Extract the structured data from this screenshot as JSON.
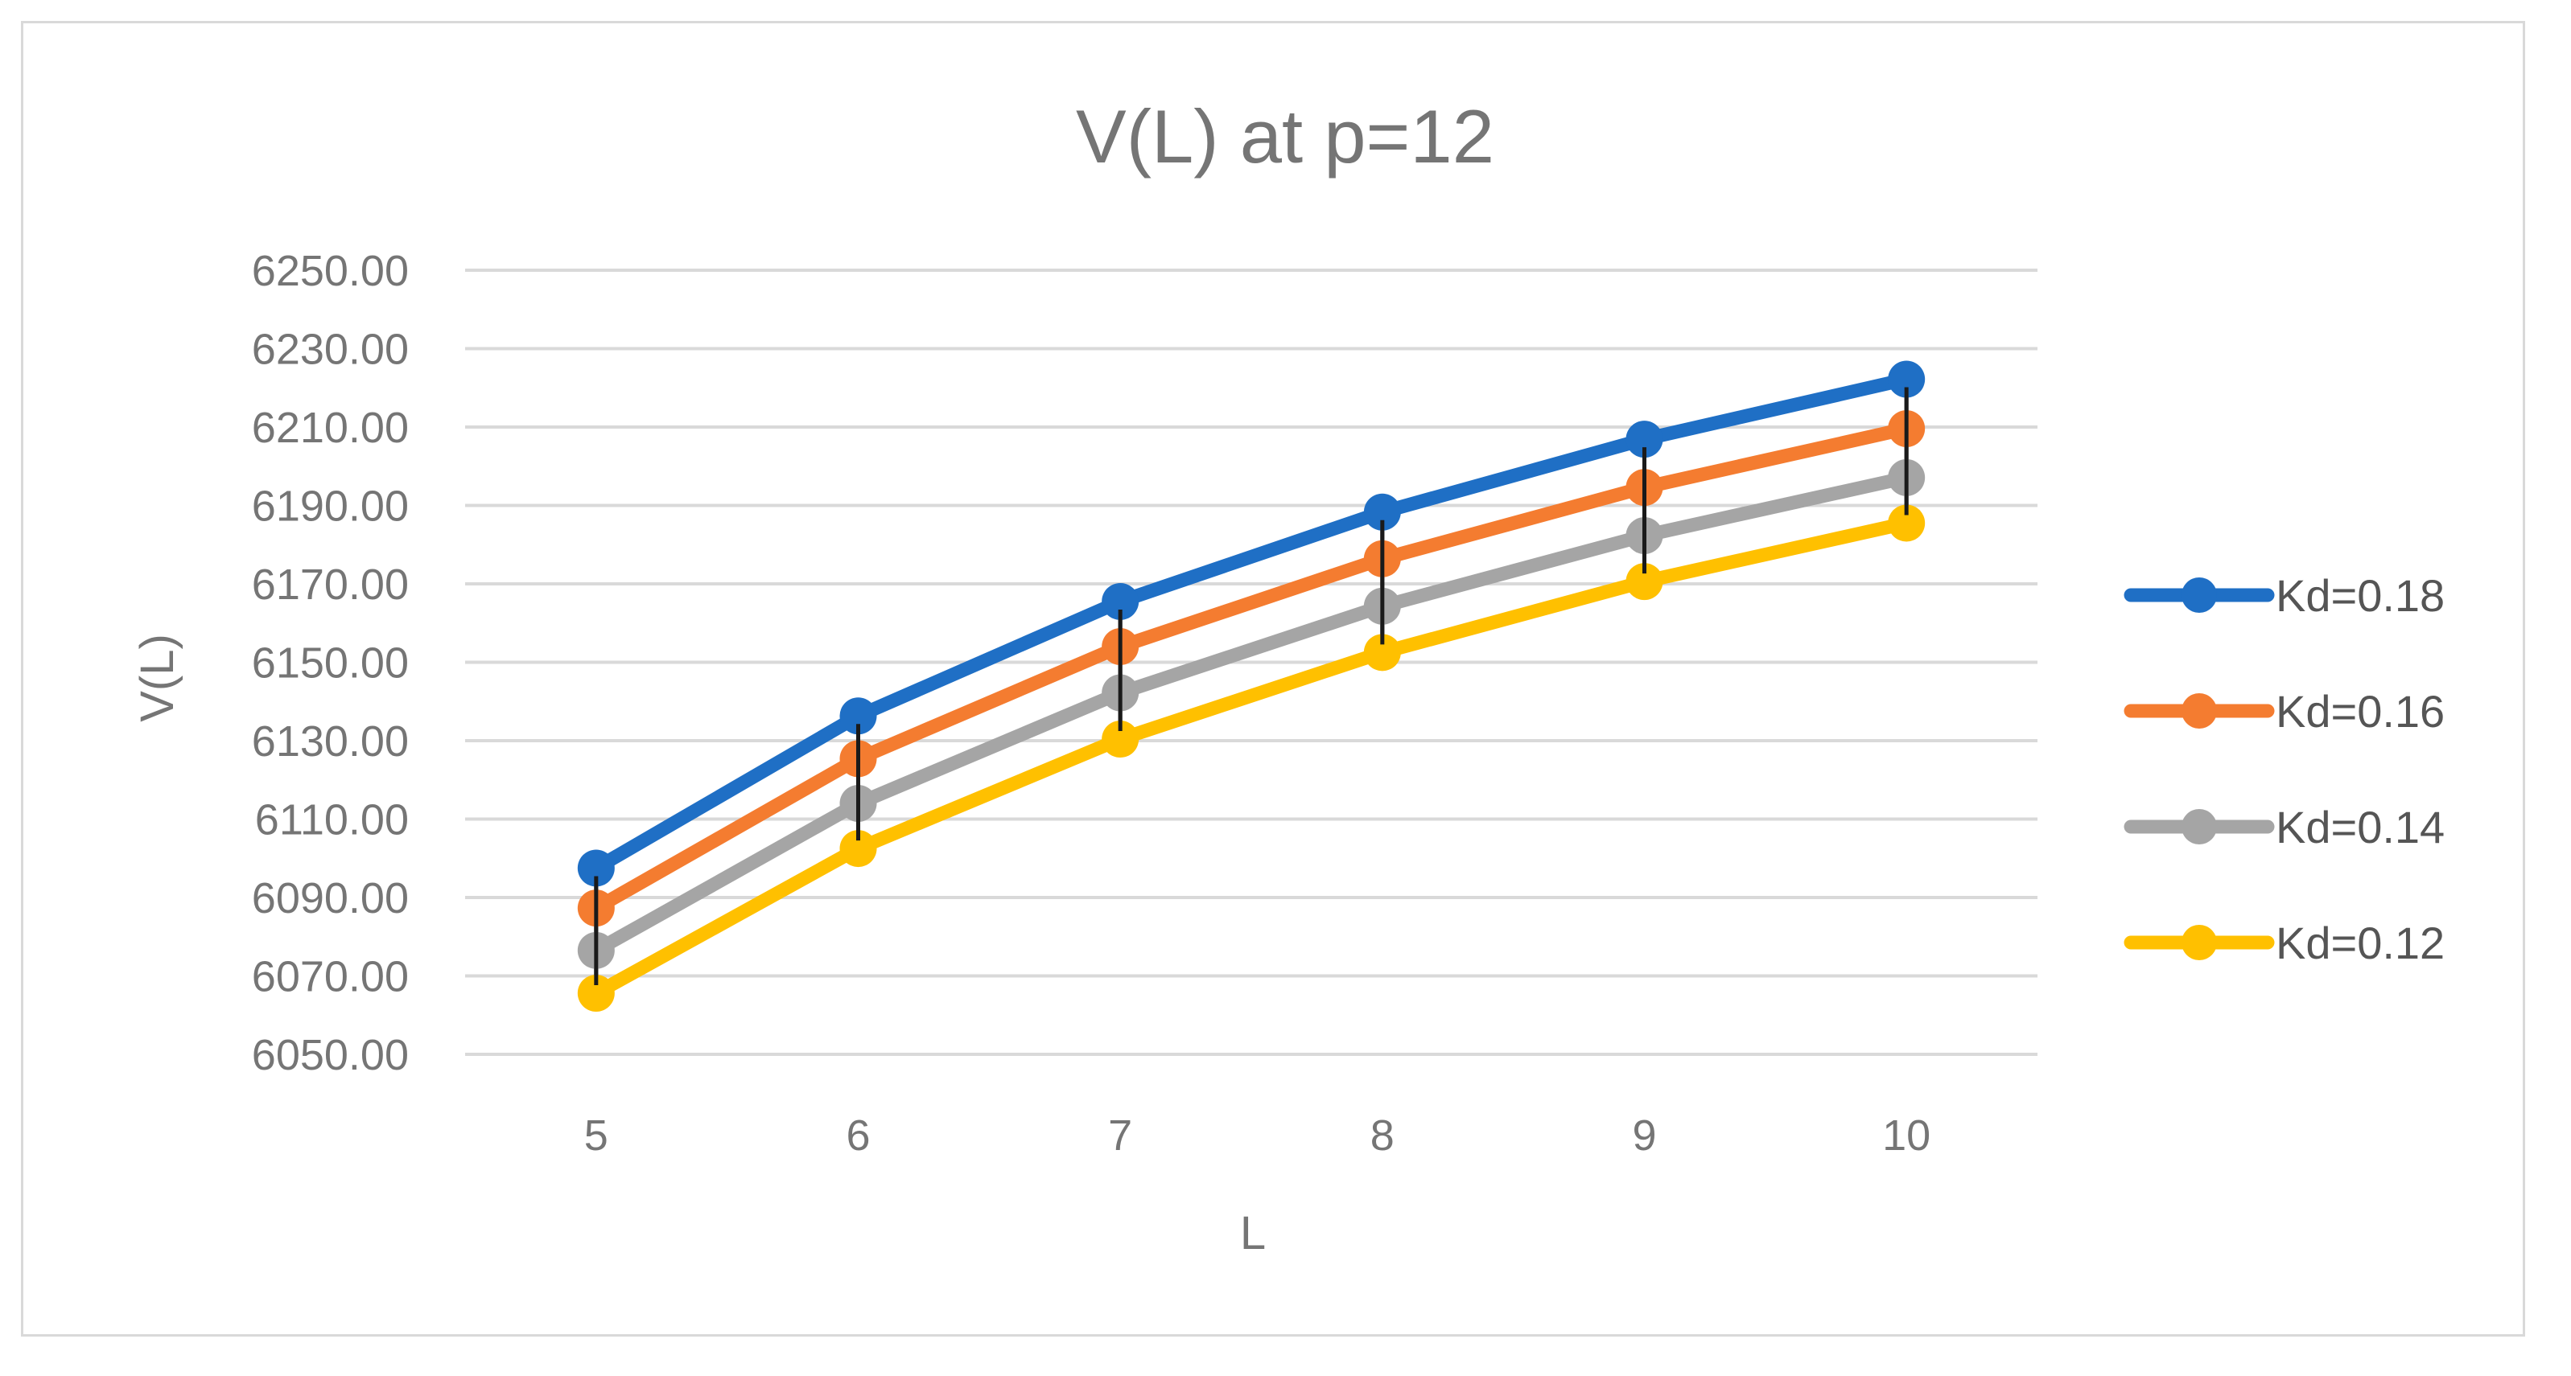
{
  "chart_data": {
    "type": "line",
    "title": "V(L) at p=12",
    "xlabel": "L",
    "ylabel": "V(L)",
    "categories": [
      "5",
      "6",
      "7",
      "8",
      "9",
      "10"
    ],
    "y_ticks": [
      "6050.00",
      "6070.00",
      "6090.00",
      "6110.00",
      "6130.00",
      "6150.00",
      "6170.00",
      "6190.00",
      "6210.00",
      "6230.00",
      "6250.00"
    ],
    "ylim": [
      6050,
      6250
    ],
    "grid": true,
    "legend_position": "right",
    "series": [
      {
        "name": "Kd=0.18",
        "color": "#1f6fc5",
        "values": [
          6097.5,
          6136.3,
          6165.5,
          6188.3,
          6206.9,
          6222.2
        ]
      },
      {
        "name": "Kd=0.16",
        "color": "#f47c30",
        "values": [
          6087.3,
          6125.4,
          6154.0,
          6176.4,
          6194.6,
          6209.6
        ]
      },
      {
        "name": "Kd=0.14",
        "color": "#a5a5a5",
        "values": [
          6076.5,
          6114.0,
          6142.2,
          6164.3,
          6182.3,
          6197.1
        ]
      },
      {
        "name": "Kd=0.12",
        "color": "#ffc000",
        "values": [
          6065.6,
          6102.5,
          6130.4,
          6152.5,
          6170.6,
          6185.5
        ]
      }
    ],
    "error_bars_color": "#1a1a1a"
  }
}
